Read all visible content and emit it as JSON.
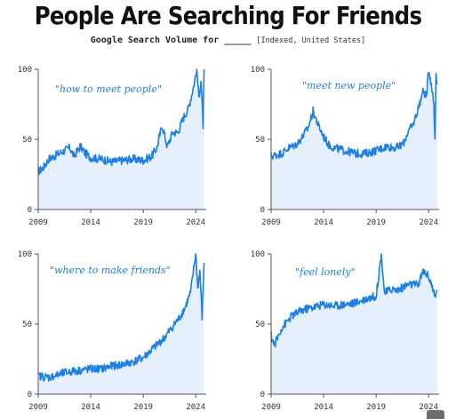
{
  "header": {
    "title": "People Are Searching For Friends",
    "subtitle_main": "Google Search Volume for _____",
    "subtitle_note": "[Indexed, United States]"
  },
  "colors": {
    "line": "#1a7fe8",
    "fill": "#e6f0fc",
    "axis": "#555555"
  },
  "chart_data": [
    {
      "type": "area",
      "label": "\"how to meet people\"",
      "x_ticks": [
        "2009",
        "2014",
        "2019",
        "2024"
      ],
      "y_ticks": [
        "0",
        "50",
        "100"
      ],
      "xlim": [
        2009,
        2025
      ],
      "ylim": [
        0,
        100
      ],
      "anchors": [
        [
          2009.0,
          27
        ],
        [
          2009.5,
          30
        ],
        [
          2010.0,
          36
        ],
        [
          2010.5,
          38
        ],
        [
          2011.0,
          40
        ],
        [
          2011.5,
          42
        ],
        [
          2012.0,
          44
        ],
        [
          2012.4,
          38
        ],
        [
          2013.0,
          45
        ],
        [
          2013.5,
          40
        ],
        [
          2014.0,
          37
        ],
        [
          2015.0,
          36
        ],
        [
          2016.0,
          34
        ],
        [
          2017.0,
          35
        ],
        [
          2018.0,
          36
        ],
        [
          2019.0,
          35
        ],
        [
          2019.8,
          38
        ],
        [
          2020.3,
          44
        ],
        [
          2020.8,
          60
        ],
        [
          2021.3,
          45
        ],
        [
          2021.8,
          55
        ],
        [
          2022.3,
          55
        ],
        [
          2022.8,
          65
        ],
        [
          2023.3,
          72
        ],
        [
          2023.8,
          88
        ],
        [
          2024.1,
          100
        ],
        [
          2024.3,
          80
        ],
        [
          2024.5,
          92
        ],
        [
          2024.7,
          60
        ],
        [
          2024.8,
          100
        ]
      ]
    },
    {
      "type": "area",
      "label": "\"meet new people\"",
      "x_ticks": [
        "2009",
        "2014",
        "2019",
        "2024"
      ],
      "y_ticks": [
        "0",
        "50",
        "100"
      ],
      "xlim": [
        2009,
        2025
      ],
      "ylim": [
        0,
        100
      ],
      "anchors": [
        [
          2009.0,
          38
        ],
        [
          2010.0,
          40
        ],
        [
          2010.7,
          44
        ],
        [
          2011.0,
          45
        ],
        [
          2011.5,
          47
        ],
        [
          2012.0,
          52
        ],
        [
          2012.5,
          58
        ],
        [
          2013.0,
          70
        ],
        [
          2013.5,
          60
        ],
        [
          2014.0,
          52
        ],
        [
          2014.5,
          46
        ],
        [
          2015.0,
          44
        ],
        [
          2016.0,
          42
        ],
        [
          2017.0,
          40
        ],
        [
          2018.0,
          40
        ],
        [
          2019.0,
          42
        ],
        [
          2020.0,
          45
        ],
        [
          2021.0,
          44
        ],
        [
          2021.6,
          47
        ],
        [
          2022.0,
          55
        ],
        [
          2022.5,
          60
        ],
        [
          2023.0,
          72
        ],
        [
          2023.5,
          85
        ],
        [
          2023.8,
          80
        ],
        [
          2024.0,
          100
        ],
        [
          2024.3,
          88
        ],
        [
          2024.5,
          75
        ],
        [
          2024.6,
          50
        ],
        [
          2024.7,
          98
        ],
        [
          2024.8,
          92
        ]
      ]
    },
    {
      "type": "area",
      "label": "\"where to make friends\"",
      "x_ticks": [
        "2009",
        "2014",
        "2019",
        "2024"
      ],
      "y_ticks": [
        "0",
        "50",
        "100"
      ],
      "xlim": [
        2009,
        2025
      ],
      "ylim": [
        0,
        100
      ],
      "anchors": [
        [
          2009.0,
          13
        ],
        [
          2010.0,
          12
        ],
        [
          2011.0,
          14
        ],
        [
          2012.0,
          16
        ],
        [
          2013.0,
          17
        ],
        [
          2014.0,
          18
        ],
        [
          2015.0,
          18
        ],
        [
          2016.0,
          20
        ],
        [
          2017.0,
          21
        ],
        [
          2018.0,
          23
        ],
        [
          2019.0,
          26
        ],
        [
          2020.0,
          33
        ],
        [
          2021.0,
          40
        ],
        [
          2021.5,
          45
        ],
        [
          2022.0,
          50
        ],
        [
          2022.5,
          55
        ],
        [
          2023.0,
          62
        ],
        [
          2023.5,
          72
        ],
        [
          2024.0,
          100
        ],
        [
          2024.2,
          75
        ],
        [
          2024.4,
          88
        ],
        [
          2024.6,
          55
        ],
        [
          2024.8,
          95
        ]
      ]
    },
    {
      "type": "area",
      "label": "\"feel lonely\"",
      "x_ticks": [
        "2009",
        "2014",
        "2019",
        "2024"
      ],
      "y_ticks": [
        "0",
        "50",
        "100"
      ],
      "xlim": [
        2009,
        2025
      ],
      "ylim": [
        0,
        100
      ],
      "anchors": [
        [
          2009.0,
          42
        ],
        [
          2009.3,
          35
        ],
        [
          2009.6,
          40
        ],
        [
          2010.0,
          47
        ],
        [
          2011.0,
          56
        ],
        [
          2012.0,
          60
        ],
        [
          2013.0,
          62
        ],
        [
          2014.0,
          64
        ],
        [
          2015.0,
          63
        ],
        [
          2016.0,
          64
        ],
        [
          2017.0,
          65
        ],
        [
          2018.0,
          68
        ],
        [
          2019.0,
          70
        ],
        [
          2019.5,
          100
        ],
        [
          2019.8,
          72
        ],
        [
          2020.5,
          75
        ],
        [
          2021.0,
          74
        ],
        [
          2022.0,
          78
        ],
        [
          2023.0,
          78
        ],
        [
          2023.5,
          88
        ],
        [
          2024.0,
          84
        ],
        [
          2024.3,
          78
        ],
        [
          2024.6,
          68
        ],
        [
          2024.8,
          74
        ]
      ]
    }
  ]
}
